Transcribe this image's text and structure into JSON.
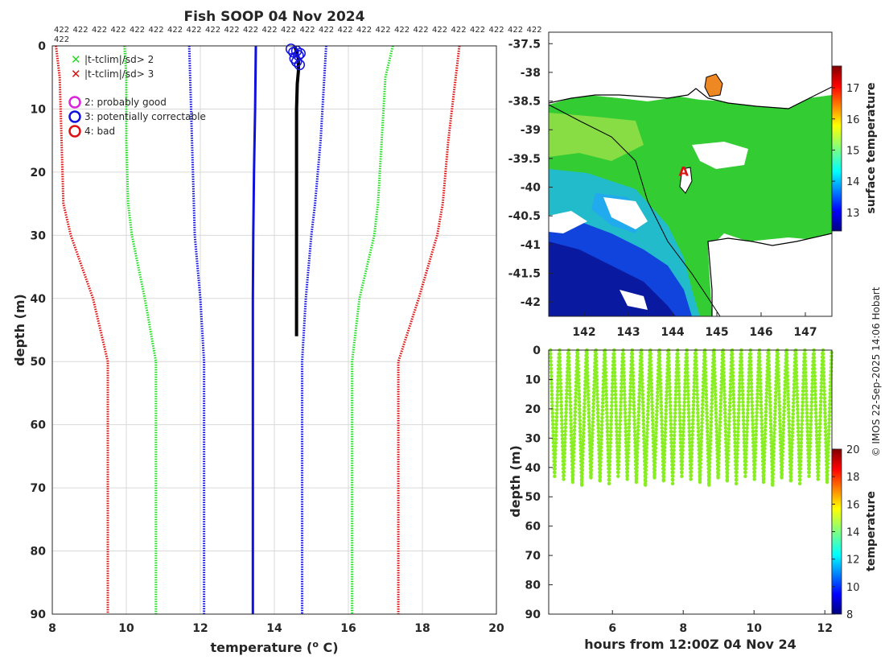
{
  "colors": {
    "red": "#dd1111",
    "green": "#22dd22",
    "blue": "#1111dd",
    "black": "#000000",
    "magenta": "#dd22dd",
    "profile_dots": "#88ee22",
    "land": "#ffffff",
    "ocean_fill": "#33cc33"
  },
  "credit": "© IMOS 22-Sep-2025 14:06 Hobart",
  "chart_data": [
    {
      "id": "profile",
      "type": "line",
      "title": "Fish SOOP 04 Nov 2024",
      "xlabel": "temperature (",
      "xlabel_sup": "o",
      "xlabel_tail": " C)",
      "ylabel": "depth (m)",
      "xlim": [
        8,
        20
      ],
      "ylim": [
        0,
        90
      ],
      "y_reversed": true,
      "xticks": [
        "8",
        "10",
        "12",
        "14",
        "16",
        "18",
        "20"
      ],
      "yticks": [
        "0",
        "10",
        "20",
        "30",
        "40",
        "50",
        "60",
        "70",
        "80",
        "90"
      ],
      "grid": true,
      "top_labels": [
        "422",
        "422",
        "422",
        "422",
        "422",
        "422",
        "422",
        "422",
        "422",
        "422",
        "422",
        "422",
        "422",
        "422",
        "422",
        "422",
        "422",
        "422",
        "422",
        "422",
        "422",
        "422",
        "422",
        "422",
        "422",
        "422"
      ],
      "top_labels_wrap": "422",
      "legend": {
        "cross_items": [
          {
            "symbol": "x",
            "color": "#22dd22",
            "label": "|t-tclim|/sd> 2"
          },
          {
            "symbol": "x",
            "color": "#dd1111",
            "label": "|t-tclim|/sd> 3"
          }
        ],
        "circle_items": [
          {
            "symbol": "o",
            "color": "#dd22dd",
            "label": "2: probably good"
          },
          {
            "symbol": "o",
            "color": "#1111dd",
            "label": "3: potentially correctable"
          },
          {
            "symbol": "o",
            "color": "#dd1111",
            "label": "4: bad"
          }
        ]
      },
      "series": [
        {
          "name": "climatology -3sd",
          "color": "#dd1111",
          "style": "dotted",
          "depth": [
            0,
            5,
            15,
            25,
            30,
            40,
            50,
            60,
            70,
            80,
            90
          ],
          "temp": [
            8.1,
            8.2,
            8.25,
            8.3,
            8.5,
            9.1,
            9.5,
            9.5,
            9.5,
            9.5,
            9.5
          ]
        },
        {
          "name": "climatology -2sd",
          "color": "#22dd22",
          "style": "dotted",
          "depth": [
            0,
            5,
            15,
            25,
            30,
            40,
            50,
            60,
            70,
            80,
            90
          ],
          "temp": [
            9.95,
            10.0,
            10.0,
            10.05,
            10.15,
            10.5,
            10.8,
            10.8,
            10.8,
            10.8,
            10.8
          ]
        },
        {
          "name": "climatology -1sd",
          "color": "#1111dd",
          "style": "dotted",
          "depth": [
            0,
            10,
            20,
            30,
            40,
            50,
            60,
            70,
            80,
            90
          ],
          "temp": [
            11.7,
            11.75,
            11.8,
            11.85,
            12.0,
            12.1,
            12.1,
            12.1,
            12.1,
            12.1
          ]
        },
        {
          "name": "climatology mean",
          "color": "#1111dd",
          "style": "solid",
          "depth": [
            0,
            10,
            20,
            30,
            40,
            50,
            60,
            70,
            80,
            90
          ],
          "temp": [
            13.5,
            13.48,
            13.45,
            13.43,
            13.42,
            13.42,
            13.42,
            13.42,
            13.42,
            13.42
          ]
        },
        {
          "name": "climatology +1sd",
          "color": "#1111dd",
          "style": "dotted",
          "depth": [
            0,
            5,
            15,
            25,
            30,
            40,
            50,
            60,
            70,
            80,
            90
          ],
          "temp": [
            15.4,
            15.35,
            15.25,
            15.1,
            15.0,
            14.85,
            14.75,
            14.75,
            14.75,
            14.75,
            14.75
          ]
        },
        {
          "name": "climatology +2sd",
          "color": "#22dd22",
          "style": "dotted",
          "depth": [
            0,
            5,
            15,
            25,
            30,
            40,
            50,
            60,
            70,
            80,
            90
          ],
          "temp": [
            17.2,
            17.0,
            16.9,
            16.8,
            16.7,
            16.3,
            16.1,
            16.1,
            16.1,
            16.1,
            16.1
          ]
        },
        {
          "name": "climatology +3sd",
          "color": "#dd1111",
          "style": "dotted",
          "depth": [
            0,
            5,
            15,
            25,
            30,
            40,
            50,
            60,
            70,
            80,
            90
          ],
          "temp": [
            19.0,
            18.9,
            18.7,
            18.55,
            18.4,
            17.9,
            17.35,
            17.35,
            17.35,
            17.35,
            17.35
          ]
        },
        {
          "name": "observed profile",
          "color": "#000000",
          "style": "thick",
          "depth": [
            0,
            1,
            2,
            4,
            6,
            10,
            20,
            30,
            40,
            46
          ],
          "temp": [
            14.55,
            14.6,
            14.65,
            14.65,
            14.62,
            14.6,
            14.6,
            14.6,
            14.6,
            14.6
          ]
        }
      ],
      "flags": {
        "label": "3: potentially correctable",
        "color": "#1111dd",
        "points": [
          [
            14.45,
            0.5
          ],
          [
            14.52,
            1.0
          ],
          [
            14.6,
            0.8
          ],
          [
            14.65,
            1.5
          ],
          [
            14.55,
            2.0
          ],
          [
            14.7,
            1.2
          ],
          [
            14.6,
            2.5
          ],
          [
            14.68,
            3.0
          ]
        ]
      }
    },
    {
      "id": "sst_map",
      "type": "heatmap",
      "xticks": [
        "142",
        "143",
        "144",
        "145",
        "146",
        "147"
      ],
      "yticks": [
        "-37.5",
        "-38",
        "-38.5",
        "-39",
        "-39.5",
        "-40",
        "-40.5",
        "-41",
        "-41.5",
        "-42"
      ],
      "xlim": [
        141.2,
        147.6
      ],
      "ylim": [
        -42.25,
        -37.3
      ],
      "colorbar_label": "surface temperature",
      "colorbar_ticks": [
        "13",
        "14",
        "15",
        "16",
        "17"
      ],
      "colorbar_range": [
        12.4,
        17.7
      ],
      "marker": {
        "label": "A",
        "lon": 144.25,
        "lat": -39.72,
        "color": "#dd1111"
      }
    },
    {
      "id": "transect",
      "type": "scatter",
      "xlabel": "hours from 12:00Z 04 Nov 24",
      "ylabel": "depth (m)",
      "xlim": [
        4.2,
        12.2
      ],
      "ylim": [
        0,
        90
      ],
      "y_reversed": true,
      "xticks": [
        "6",
        "8",
        "10",
        "12"
      ],
      "yticks": [
        "0",
        "10",
        "20",
        "30",
        "40",
        "50",
        "60",
        "70",
        "80",
        "90"
      ],
      "colorbar_label": "temperature",
      "colorbar_ticks": [
        "8",
        "10",
        "12",
        "14",
        "16",
        "18",
        "20"
      ],
      "colorbar_range": [
        8,
        20
      ],
      "profile_count": 31,
      "time_range": [
        4.25,
        11.95
      ],
      "max_depth_range": [
        43,
        46
      ],
      "point_temperature": 14.8
    }
  ]
}
